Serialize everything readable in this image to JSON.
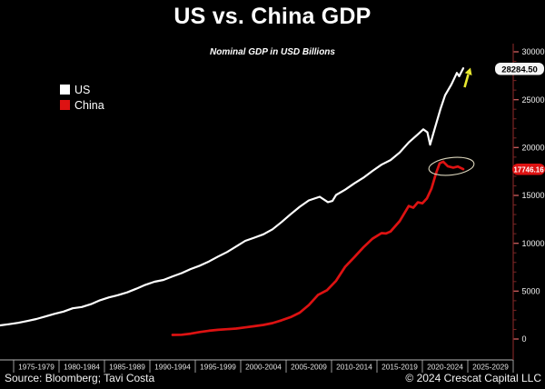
{
  "footer": {
    "source": "Source: Bloomberg; Tavi Costa",
    "copyright": "© 2024 Crescat Capital LLC"
  },
  "chart_data": {
    "type": "line",
    "title": "US vs. China GDP",
    "subtitle": "Nominal GDP in USD Billions",
    "unit": "USD Billions",
    "grid": false,
    "background_color": "#000000",
    "legend_position": "top-left",
    "colors": {
      "us": "#ffffff",
      "china": "#dd1212",
      "axis_line": "#7a2525",
      "major_tick": "#c25a5a",
      "minor_tick": "#7a2525",
      "tick_label": "#f2f2f2",
      "x_axis_line": "#b5b5b5",
      "x_separator": "#9a9a9a",
      "x_band_label": "#e2e2e2",
      "arrow": "#e9e930",
      "ellipse": "#d9d3ba",
      "us_pill_bg": "#f5f5f5",
      "us_pill_text": "#000000",
      "china_pill_bg": "#dd1212",
      "china_pill_text": "#ffffff"
    },
    "x_axis": {
      "domain": [
        1973,
        2029
      ],
      "bands": [
        "1975-1979",
        "1980-1984",
        "1985-1989",
        "1990-1994",
        "1995-1999",
        "2000-2004",
        "2005-2009",
        "2010-2014",
        "2015-2019",
        "2020-2024",
        "2025-2029"
      ]
    },
    "y_axis": {
      "side": "right",
      "domain": [
        0,
        30000
      ],
      "major_step": 5000,
      "minor_step": 1000,
      "tick_labels": [
        "0",
        "5000",
        "10000",
        "15000",
        "20000",
        "25000",
        "30000"
      ]
    },
    "series": [
      {
        "name": "US",
        "color": "#ffffff",
        "points": [
          [
            1973,
            1425
          ],
          [
            1974,
            1545
          ],
          [
            1975,
            1689
          ],
          [
            1976,
            1877
          ],
          [
            1977,
            2086
          ],
          [
            1978,
            2357
          ],
          [
            1979,
            2632
          ],
          [
            1980,
            2863
          ],
          [
            1981,
            3211
          ],
          [
            1982,
            3345
          ],
          [
            1983,
            3638
          ],
          [
            1984,
            4041
          ],
          [
            1985,
            4347
          ],
          [
            1986,
            4590
          ],
          [
            1987,
            4870
          ],
          [
            1988,
            5253
          ],
          [
            1989,
            5658
          ],
          [
            1990,
            5980
          ],
          [
            1991,
            6174
          ],
          [
            1992,
            6539
          ],
          [
            1993,
            6879
          ],
          [
            1994,
            7309
          ],
          [
            1995,
            7664
          ],
          [
            1996,
            8100
          ],
          [
            1997,
            8609
          ],
          [
            1998,
            9089
          ],
          [
            1999,
            9661
          ],
          [
            2000,
            10250
          ],
          [
            2001,
            10582
          ],
          [
            2002,
            10936
          ],
          [
            2003,
            11458
          ],
          [
            2004,
            12214
          ],
          [
            2005,
            13037
          ],
          [
            2006,
            13815
          ],
          [
            2007,
            14474
          ],
          [
            2008.2,
            14860
          ],
          [
            2009.1,
            14300
          ],
          [
            2009.6,
            14420
          ],
          [
            2010,
            15049
          ],
          [
            2011,
            15600
          ],
          [
            2012,
            16254
          ],
          [
            2013,
            16843
          ],
          [
            2014,
            17551
          ],
          [
            2015,
            18206
          ],
          [
            2016,
            18695
          ],
          [
            2017,
            19477
          ],
          [
            2018,
            20533
          ],
          [
            2019,
            21381
          ],
          [
            2019.6,
            21900
          ],
          [
            2020.05,
            21600
          ],
          [
            2020.35,
            20300
          ],
          [
            2020.9,
            22100
          ],
          [
            2021.5,
            24050
          ],
          [
            2022,
            25460
          ],
          [
            2022.7,
            26600
          ],
          [
            2023.3,
            27800
          ],
          [
            2023.55,
            27450
          ],
          [
            2024,
            28284.5
          ]
        ]
      },
      {
        "name": "China",
        "color": "#dd1212",
        "points": [
          [
            1992,
            427
          ],
          [
            1993,
            445
          ],
          [
            1994,
            564
          ],
          [
            1995,
            734
          ],
          [
            1996,
            864
          ],
          [
            1997,
            961
          ],
          [
            1998,
            1029
          ],
          [
            1999,
            1094
          ],
          [
            2000,
            1211
          ],
          [
            2001,
            1339
          ],
          [
            2002,
            1471
          ],
          [
            2003,
            1660
          ],
          [
            2004,
            1955
          ],
          [
            2005,
            2286
          ],
          [
            2006,
            2752
          ],
          [
            2007,
            3550
          ],
          [
            2008,
            4594
          ],
          [
            2009,
            5102
          ],
          [
            2010,
            6087
          ],
          [
            2011,
            7552
          ],
          [
            2012,
            8532
          ],
          [
            2013,
            9570
          ],
          [
            2014,
            10476
          ],
          [
            2015,
            11062
          ],
          [
            2015.5,
            11020
          ],
          [
            2016,
            11233
          ],
          [
            2017,
            12310
          ],
          [
            2018,
            13895
          ],
          [
            2018.5,
            13720
          ],
          [
            2019,
            14280
          ],
          [
            2019.5,
            14170
          ],
          [
            2020,
            14688
          ],
          [
            2020.5,
            15700
          ],
          [
            2021,
            17300
          ],
          [
            2021.4,
            18350
          ],
          [
            2021.8,
            18520
          ],
          [
            2022.3,
            18050
          ],
          [
            2022.9,
            17900
          ],
          [
            2023.4,
            18020
          ],
          [
            2024,
            17746.16
          ]
        ]
      }
    ],
    "annotations": {
      "us_end_label": "28284.50",
      "china_end_label": "17746.16"
    }
  }
}
